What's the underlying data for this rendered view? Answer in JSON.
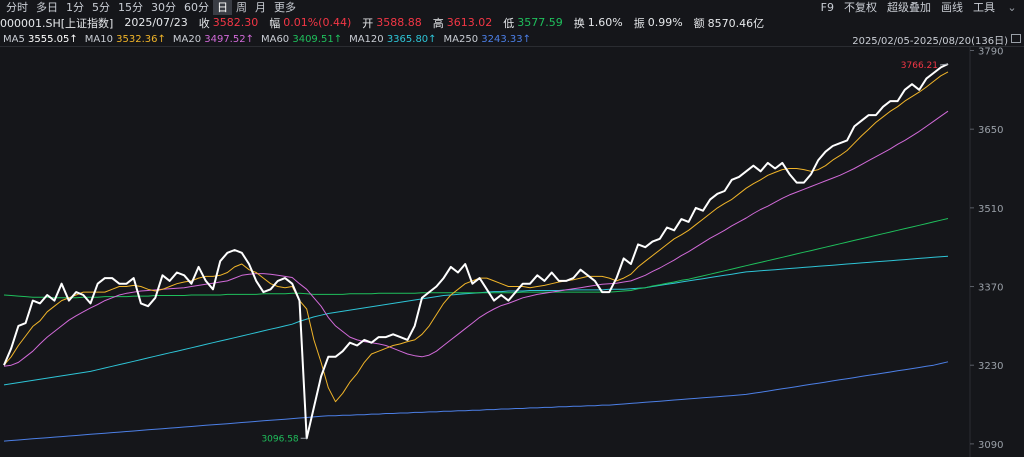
{
  "toolbar": {
    "periods": [
      "分时",
      "多日",
      "1分",
      "5分",
      "15分",
      "30分",
      "60分",
      "日",
      "周",
      "月",
      "更多"
    ],
    "active_period": "日",
    "tools": [
      "F9",
      "不复权",
      "超级叠加",
      "画线",
      "工具"
    ]
  },
  "quote": {
    "code": "000001.SH[上证指数]",
    "date": "2025/07/23",
    "close_label": "收",
    "close": "3582.30",
    "change_label": "幅",
    "change": "0.01%(0.44)",
    "open_label": "开",
    "open": "3588.88",
    "high_label": "高",
    "high": "3613.02",
    "low_label": "低",
    "low": "3577.59",
    "turnover_label": "换",
    "turnover": "1.60%",
    "amplitude_label": "振",
    "amplitude": "0.99%",
    "amount_label": "额",
    "amount": "8570.46亿"
  },
  "ma_legend": {
    "items": [
      {
        "label": "MA5",
        "value": "3555.05↑",
        "color": "#ffffff"
      },
      {
        "label": "MA10",
        "value": "3532.36↑",
        "color": "#f0b429"
      },
      {
        "label": "MA20",
        "value": "3497.52↑",
        "color": "#d16ad8"
      },
      {
        "label": "MA60",
        "value": "3409.51↑",
        "color": "#1fbf5c"
      },
      {
        "label": "MA120",
        "value": "3365.80↑",
        "color": "#2ec4d6"
      },
      {
        "label": "MA250",
        "value": "3243.33↑",
        "color": "#4c7fe6"
      }
    ],
    "range": "2025/02/05-2025/08/20(136日)"
  },
  "chart_data": {
    "type": "line",
    "y_ticks": [
      "3790",
      "3650",
      "3510",
      "3370",
      "3230",
      "3090"
    ],
    "ylim": [
      3072,
      3798
    ],
    "annotations": {
      "max": "3766.21",
      "min": "3096.58"
    },
    "grid": false,
    "series": [
      {
        "name": "MA5",
        "color": "#ffffff",
        "values": [
          3230,
          3260,
          3300,
          3305,
          3345,
          3340,
          3355,
          3345,
          3375,
          3345,
          3360,
          3355,
          3340,
          3375,
          3385,
          3385,
          3375,
          3375,
          3385,
          3340,
          3335,
          3350,
          3390,
          3380,
          3395,
          3390,
          3375,
          3405,
          3380,
          3365,
          3415,
          3430,
          3435,
          3430,
          3410,
          3380,
          3360,
          3365,
          3380,
          3385,
          3375,
          3345,
          3100,
          3155,
          3210,
          3245,
          3245,
          3255,
          3270,
          3265,
          3275,
          3270,
          3280,
          3280,
          3285,
          3280,
          3275,
          3300,
          3350,
          3360,
          3370,
          3385,
          3405,
          3395,
          3410,
          3375,
          3385,
          3365,
          3345,
          3355,
          3345,
          3360,
          3375,
          3375,
          3390,
          3380,
          3395,
          3380,
          3380,
          3385,
          3400,
          3390,
          3380,
          3360,
          3360,
          3385,
          3420,
          3410,
          3445,
          3440,
          3450,
          3455,
          3475,
          3470,
          3490,
          3485,
          3510,
          3505,
          3525,
          3535,
          3540,
          3560,
          3565,
          3575,
          3585,
          3575,
          3590,
          3580,
          3590,
          3570,
          3555,
          3555,
          3570,
          3595,
          3610,
          3620,
          3625,
          3630,
          3655,
          3665,
          3675,
          3675,
          3690,
          3700,
          3700,
          3720,
          3730,
          3720,
          3740,
          3750,
          3760,
          3766
        ]
      },
      {
        "name": "MA10",
        "color": "#f0b429",
        "values": [
          3230,
          3245,
          3265,
          3282,
          3299,
          3309,
          3325,
          3335,
          3345,
          3350,
          3355,
          3360,
          3360,
          3360,
          3360,
          3365,
          3370,
          3370,
          3372,
          3370,
          3365,
          3362,
          3365,
          3370,
          3375,
          3378,
          3380,
          3385,
          3388,
          3388,
          3390,
          3395,
          3405,
          3410,
          3400,
          3395,
          3385,
          3375,
          3370,
          3368,
          3370,
          3345,
          3330,
          3275,
          3235,
          3190,
          3165,
          3180,
          3200,
          3215,
          3235,
          3250,
          3255,
          3260,
          3265,
          3268,
          3272,
          3275,
          3285,
          3300,
          3320,
          3340,
          3355,
          3365,
          3375,
          3380,
          3385,
          3385,
          3380,
          3375,
          3370,
          3370,
          3370,
          3368,
          3370,
          3372,
          3375,
          3378,
          3380,
          3382,
          3385,
          3388,
          3388,
          3388,
          3385,
          3380,
          3385,
          3392,
          3405,
          3415,
          3425,
          3435,
          3445,
          3455,
          3462,
          3470,
          3480,
          3490,
          3500,
          3510,
          3518,
          3525,
          3535,
          3545,
          3553,
          3560,
          3568,
          3573,
          3578,
          3580,
          3580,
          3578,
          3575,
          3578,
          3585,
          3595,
          3603,
          3612,
          3625,
          3638,
          3650,
          3662,
          3672,
          3682,
          3690,
          3700,
          3708,
          3716,
          3725,
          3735,
          3745,
          3752
        ]
      },
      {
        "name": "MA20",
        "color": "#d16ad8",
        "values": [
          3228,
          3230,
          3235,
          3245,
          3255,
          3268,
          3280,
          3290,
          3300,
          3310,
          3318,
          3325,
          3332,
          3338,
          3345,
          3350,
          3355,
          3358,
          3360,
          3362,
          3363,
          3364,
          3365,
          3366,
          3367,
          3368,
          3370,
          3372,
          3374,
          3376,
          3378,
          3380,
          3385,
          3390,
          3392,
          3393,
          3393,
          3392,
          3390,
          3388,
          3386,
          3375,
          3365,
          3350,
          3335,
          3315,
          3300,
          3290,
          3280,
          3275,
          3272,
          3270,
          3268,
          3265,
          3260,
          3255,
          3250,
          3247,
          3245,
          3248,
          3255,
          3265,
          3275,
          3285,
          3295,
          3305,
          3315,
          3323,
          3330,
          3336,
          3340,
          3345,
          3350,
          3353,
          3356,
          3358,
          3360,
          3362,
          3364,
          3366,
          3368,
          3370,
          3372,
          3374,
          3375,
          3376,
          3378,
          3380,
          3385,
          3390,
          3397,
          3403,
          3410,
          3417,
          3425,
          3432,
          3440,
          3448,
          3456,
          3463,
          3470,
          3478,
          3485,
          3492,
          3500,
          3507,
          3513,
          3520,
          3527,
          3533,
          3538,
          3543,
          3548,
          3553,
          3558,
          3563,
          3568,
          3574,
          3580,
          3587,
          3594,
          3601,
          3608,
          3615,
          3623,
          3630,
          3638,
          3646,
          3655,
          3664,
          3673,
          3682
        ]
      },
      {
        "name": "MA60",
        "color": "#1fbf5c",
        "values": [
          3355,
          3354,
          3353,
          3352,
          3351,
          3351,
          3351,
          3350,
          3350,
          3350,
          3350,
          3351,
          3351,
          3351,
          3352,
          3352,
          3352,
          3352,
          3353,
          3353,
          3353,
          3354,
          3354,
          3354,
          3354,
          3354,
          3355,
          3355,
          3355,
          3355,
          3355,
          3356,
          3356,
          3356,
          3356,
          3356,
          3357,
          3357,
          3357,
          3357,
          3358,
          3358,
          3357,
          3356,
          3356,
          3356,
          3356,
          3356,
          3357,
          3357,
          3357,
          3357,
          3358,
          3358,
          3358,
          3358,
          3358,
          3358,
          3359,
          3359,
          3359,
          3359,
          3359,
          3359,
          3359,
          3359,
          3359,
          3359,
          3359,
          3359,
          3359,
          3359,
          3360,
          3360,
          3360,
          3360,
          3360,
          3360,
          3360,
          3360,
          3360,
          3360,
          3360,
          3360,
          3360,
          3361,
          3362,
          3363,
          3366,
          3368,
          3371,
          3373,
          3376,
          3378,
          3381,
          3383,
          3386,
          3389,
          3392,
          3395,
          3398,
          3401,
          3404,
          3407,
          3410,
          3413,
          3416,
          3419,
          3422,
          3425,
          3428,
          3431,
          3434,
          3437,
          3440,
          3443,
          3446,
          3449,
          3452,
          3455,
          3458,
          3461,
          3464,
          3467,
          3470,
          3473,
          3476,
          3479,
          3482,
          3485,
          3488,
          3491
        ]
      },
      {
        "name": "MA120",
        "color": "#2ec4d6",
        "values": [
          3195,
          3197,
          3199,
          3201,
          3203,
          3205,
          3207,
          3209,
          3211,
          3213,
          3215,
          3217,
          3219,
          3222,
          3225,
          3228,
          3231,
          3234,
          3237,
          3240,
          3243,
          3246,
          3249,
          3252,
          3255,
          3258,
          3261,
          3264,
          3267,
          3270,
          3273,
          3276,
          3279,
          3282,
          3285,
          3288,
          3291,
          3294,
          3297,
          3300,
          3303,
          3308,
          3312,
          3316,
          3319,
          3322,
          3324,
          3326,
          3328,
          3330,
          3332,
          3334,
          3336,
          3338,
          3340,
          3342,
          3344,
          3346,
          3348,
          3350,
          3352,
          3354,
          3355,
          3356,
          3357,
          3358,
          3359,
          3360,
          3361,
          3361,
          3362,
          3362,
          3362,
          3363,
          3363,
          3363,
          3363,
          3363,
          3364,
          3364,
          3364,
          3364,
          3364,
          3364,
          3365,
          3365,
          3365,
          3366,
          3367,
          3368,
          3370,
          3372,
          3374,
          3376,
          3378,
          3380,
          3382,
          3384,
          3386,
          3388,
          3390,
          3392,
          3394,
          3396,
          3397,
          3398,
          3399,
          3400,
          3401,
          3402,
          3403,
          3404,
          3405,
          3406,
          3407,
          3408,
          3409,
          3410,
          3411,
          3412,
          3413,
          3414,
          3415,
          3416,
          3417,
          3418,
          3419,
          3420,
          3421,
          3422,
          3423,
          3424
        ]
      },
      {
        "name": "MA250",
        "color": "#4c7fe6",
        "values": [
          3095,
          3096,
          3097,
          3098,
          3099,
          3100,
          3101,
          3102,
          3103,
          3104,
          3105,
          3106,
          3107,
          3108,
          3109,
          3110,
          3111,
          3112,
          3113,
          3114,
          3115,
          3116,
          3117,
          3118,
          3119,
          3120,
          3121,
          3122,
          3123,
          3124,
          3125,
          3126,
          3127,
          3128,
          3129,
          3130,
          3131,
          3132,
          3133,
          3134,
          3135,
          3136,
          3137,
          3138,
          3139,
          3140,
          3140,
          3141,
          3141,
          3142,
          3142,
          3143,
          3143,
          3144,
          3144,
          3145,
          3145,
          3146,
          3146,
          3147,
          3147,
          3148,
          3148,
          3149,
          3149,
          3150,
          3150,
          3151,
          3151,
          3152,
          3152,
          3153,
          3153,
          3154,
          3154,
          3155,
          3155,
          3156,
          3156,
          3157,
          3157,
          3158,
          3158,
          3159,
          3159,
          3160,
          3161,
          3162,
          3163,
          3164,
          3165,
          3166,
          3167,
          3168,
          3169,
          3170,
          3171,
          3172,
          3173,
          3174,
          3175,
          3176,
          3177,
          3178,
          3180,
          3182,
          3184,
          3186,
          3188,
          3190,
          3192,
          3194,
          3196,
          3198,
          3200,
          3202,
          3204,
          3206,
          3208,
          3210,
          3212,
          3214,
          3216,
          3218,
          3220,
          3222,
          3224,
          3226,
          3228,
          3230,
          3233,
          3236
        ]
      }
    ]
  }
}
